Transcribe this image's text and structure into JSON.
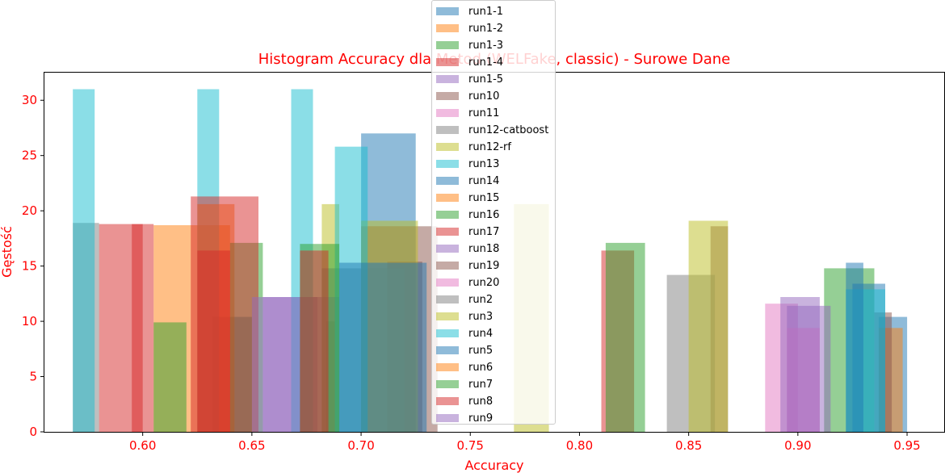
{
  "chart_data": {
    "type": "bar",
    "title": "Histogram Accuracy dla Metod (WELFake, classic) - Surowe Dane",
    "xlabel": "Accuracy",
    "ylabel": "Gęstość",
    "xlim": [
      0.555,
      0.967
    ],
    "ylim": [
      0,
      32.5
    ],
    "xticks": [
      "0.60",
      "0.65",
      "0.70",
      "0.75",
      "0.80",
      "0.85",
      "0.90",
      "0.95"
    ],
    "yticks": [
      "0",
      "5",
      "10",
      "15",
      "20",
      "25",
      "30"
    ],
    "title_color": "#ff0000",
    "label_color": "#ff0000",
    "legend_position": "top-center",
    "grid": false,
    "series": [
      {
        "name": "run1-1",
        "color": "#1f77b4",
        "bars": [
          [
            0.632,
            0.65,
            10.4
          ],
          [
            0.7,
            0.725,
            27.0
          ],
          [
            0.937,
            0.95,
            10.4
          ]
        ]
      },
      {
        "name": "run1-2",
        "color": "#ff7f0e",
        "bars": [
          [
            0.605,
            0.64,
            18.7
          ],
          [
            0.937,
            0.948,
            9.4
          ]
        ]
      },
      {
        "name": "run1-3",
        "color": "#2ca02c",
        "bars": [
          [
            0.605,
            0.62,
            9.9
          ],
          [
            0.684,
            0.688,
            10.0
          ],
          [
            0.912,
            0.935,
            14.8
          ]
        ]
      },
      {
        "name": "run1-4",
        "color": "#d62728",
        "bars": [
          [
            0.595,
            0.605,
            18.8
          ],
          [
            0.81,
            0.825,
            16.4
          ]
        ]
      },
      {
        "name": "run1-5",
        "color": "#9467bd",
        "bars": [
          [
            0.655,
            0.68,
            12.2
          ]
        ]
      },
      {
        "name": "run10",
        "color": "#8c564b",
        "bars": [
          [
            0.7,
            0.735,
            18.6
          ],
          [
            0.86,
            0.868,
            18.6
          ],
          [
            0.935,
            0.943,
            10.8
          ]
        ]
      },
      {
        "name": "run11",
        "color": "#e377c2",
        "bars": [
          [
            0.885,
            0.9,
            11.6
          ]
        ]
      },
      {
        "name": "run12-catboost",
        "color": "#7f7f7f",
        "bars": [
          [
            0.568,
            0.58,
            18.9
          ],
          [
            0.84,
            0.862,
            14.2
          ]
        ]
      },
      {
        "name": "run12-rf",
        "color": "#bcbd22",
        "bars": [
          [
            0.682,
            0.69,
            20.6
          ],
          [
            0.85,
            0.868,
            19.1
          ]
        ]
      },
      {
        "name": "run13",
        "color": "#17becf",
        "bars": [
          [
            0.568,
            0.578,
            31.0
          ],
          [
            0.625,
            0.635,
            31.0
          ],
          [
            0.668,
            0.678,
            31.0
          ]
        ]
      },
      {
        "name": "run14",
        "color": "#1f77b4",
        "bars": [
          [
            0.925,
            0.94,
            13.4
          ]
        ]
      },
      {
        "name": "run15",
        "color": "#ff7f0e",
        "bars": [
          [
            0.625,
            0.642,
            20.6
          ]
        ]
      },
      {
        "name": "run16",
        "color": "#2ca02c",
        "bars": [
          [
            0.64,
            0.655,
            17.1
          ],
          [
            0.812,
            0.83,
            17.1
          ]
        ]
      },
      {
        "name": "run17",
        "color": "#d62728",
        "bars": [
          [
            0.58,
            0.6,
            18.8
          ],
          [
            0.622,
            0.653,
            21.3
          ]
        ]
      },
      {
        "name": "run18",
        "color": "#9467bd",
        "bars": [
          [
            0.65,
            0.69,
            12.2
          ],
          [
            0.892,
            0.91,
            12.2
          ]
        ]
      },
      {
        "name": "run19",
        "color": "#8c564b",
        "bars": [
          [
            0.712,
            0.728,
            15.4
          ]
        ]
      },
      {
        "name": "run20",
        "color": "#e377c2",
        "bars": [
          [
            0.895,
            0.91,
            9.4
          ]
        ]
      },
      {
        "name": "run2",
        "color": "#7f7f7f",
        "bars": [
          [
            0.682,
            0.72,
            14.8
          ]
        ]
      },
      {
        "name": "run3",
        "color": "#bcbd22",
        "bars": [
          [
            0.7,
            0.726,
            19.1
          ],
          [
            0.77,
            0.786,
            20.6
          ]
        ]
      },
      {
        "name": "run4",
        "color": "#17becf",
        "bars": [
          [
            0.688,
            0.703,
            25.8
          ],
          [
            0.922,
            0.94,
            12.9
          ]
        ]
      },
      {
        "name": "run5",
        "color": "#1f77b4",
        "bars": [
          [
            0.69,
            0.73,
            15.3
          ],
          [
            0.922,
            0.93,
            15.3
          ]
        ]
      },
      {
        "name": "run6",
        "color": "#ff7f0e",
        "bars": []
      },
      {
        "name": "run7",
        "color": "#2ca02c",
        "bars": [
          [
            0.672,
            0.69,
            17.0
          ]
        ]
      },
      {
        "name": "run8",
        "color": "#d62728",
        "bars": [
          [
            0.625,
            0.64,
            16.4
          ],
          [
            0.672,
            0.685,
            16.4
          ]
        ]
      },
      {
        "name": "run9",
        "color": "#9467bd",
        "bars": [
          [
            0.895,
            0.915,
            11.4
          ]
        ]
      }
    ]
  }
}
